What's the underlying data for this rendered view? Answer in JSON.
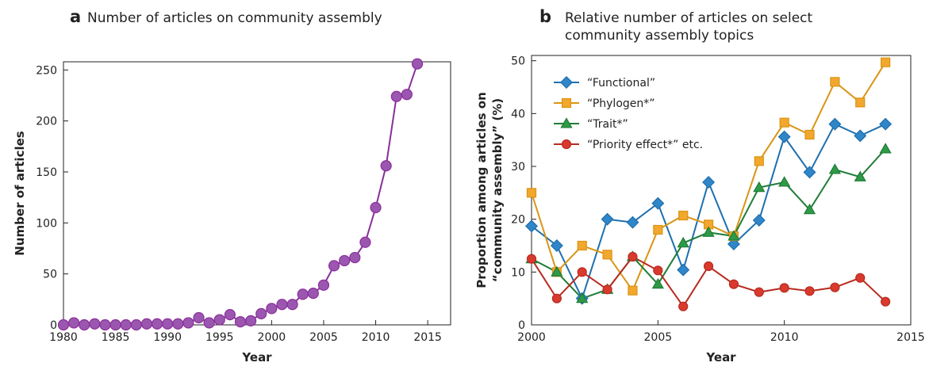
{
  "chart_data": [
    {
      "type": "line",
      "panel": "a",
      "title": "Number of articles on community assembly",
      "x_label": "Year",
      "y_label": "Number of articles",
      "x": [
        1980,
        1981,
        1982,
        1983,
        1984,
        1985,
        1986,
        1987,
        1988,
        1989,
        1990,
        1991,
        1992,
        1993,
        1994,
        1995,
        1996,
        1997,
        1998,
        1999,
        2000,
        2001,
        2002,
        2003,
        2004,
        2005,
        2006,
        2007,
        2008,
        2009,
        2010,
        2011,
        2012,
        2013,
        2014
      ],
      "series": [
        {
          "color": "#9b57b0",
          "line_color": "#8a2f9a",
          "marker": "circle",
          "values": [
            0,
            2,
            0,
            1,
            0,
            0,
            0,
            0,
            1,
            1,
            1,
            1,
            2,
            7,
            2,
            5,
            10,
            3,
            4,
            11,
            16,
            20,
            20,
            30,
            31,
            39,
            58,
            63,
            66,
            81,
            115,
            156,
            224,
            226,
            256
          ]
        }
      ],
      "xlim": [
        1980,
        2017.2
      ],
      "xticks": [
        1980,
        1985,
        1990,
        1995,
        2000,
        2005,
        2010,
        2015
      ],
      "ylim": [
        0,
        258
      ],
      "yticks": [
        0,
        50,
        100,
        150,
        200,
        250
      ]
    },
    {
      "type": "line",
      "panel": "b",
      "title": [
        "Relative number of articles on select",
        "community assembly topics"
      ],
      "x_label": "Year",
      "y_label": [
        "Proportion among articles on",
        "“community assembly” (%)"
      ],
      "x": [
        2000,
        2001,
        2002,
        2003,
        2004,
        2005,
        2006,
        2007,
        2008,
        2009,
        2010,
        2011,
        2012,
        2013,
        2014
      ],
      "series": [
        {
          "name": "“Functional”",
          "color": "#2f86c8",
          "line_color": "#1f6fae",
          "marker": "diamond",
          "values": [
            18.7,
            15,
            5,
            20,
            19.4,
            23,
            10.4,
            27,
            15.3,
            19.8,
            35.6,
            28.9,
            38,
            35.8,
            38
          ]
        },
        {
          "name": "“Phylogen*”",
          "color": "#f2a72e",
          "line_color": "#d99514",
          "marker": "square",
          "values": [
            25,
            10,
            15,
            13.3,
            6.5,
            18,
            20.7,
            19,
            16.8,
            31,
            38.3,
            36,
            46,
            42.1,
            49.7
          ]
        },
        {
          "name": "“Trait*”",
          "color": "#2e9a48",
          "line_color": "#1f7d37",
          "marker": "triangle",
          "values": [
            12.5,
            10,
            5,
            6.7,
            12.9,
            7.7,
            15.5,
            17.5,
            16.8,
            26,
            27,
            21.8,
            29.4,
            28,
            33.3
          ]
        },
        {
          "name": "“Priority effect*” etc.",
          "color": "#d93a2e",
          "line_color": "#b82a20",
          "marker": "circle",
          "values": [
            12.5,
            5,
            10,
            6.7,
            12.9,
            10.3,
            3.5,
            11.1,
            7.7,
            6.2,
            7,
            6.4,
            7.1,
            8.9,
            4.4
          ]
        }
      ],
      "xlim": [
        2000,
        2015
      ],
      "xticks": [
        2000,
        2005,
        2010,
        2015
      ],
      "ylim": [
        0,
        51
      ],
      "yticks": [
        0,
        10,
        20,
        30,
        40,
        50
      ]
    }
  ]
}
